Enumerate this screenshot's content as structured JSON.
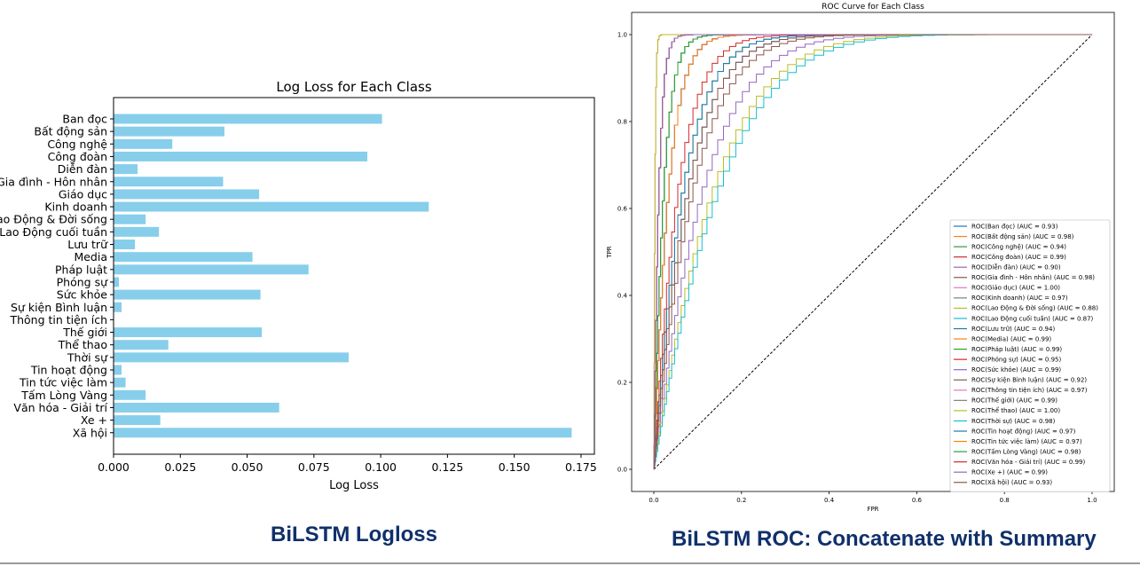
{
  "captions": {
    "left": "BiLSTM Logloss",
    "right": "BiLSTM ROC: Concatenate with Summary"
  },
  "chart_data": [
    {
      "type": "bar",
      "orientation": "horizontal",
      "title": "Log Loss for Each Class",
      "xlabel": "Log Loss",
      "ylabel": "",
      "xlim": [
        0,
        0.18
      ],
      "xticks": [
        "0.000",
        "0.025",
        "0.050",
        "0.075",
        "0.100",
        "0.125",
        "0.150",
        "0.175"
      ],
      "xtick_values": [
        0,
        0.025,
        0.05,
        0.075,
        0.1,
        0.125,
        0.15,
        0.175
      ],
      "bar_color": "#87ceeb",
      "categories": [
        "Ban đọc",
        "Bất động sản",
        "Công nghệ",
        "Công đoàn",
        "Diễn đàn",
        "Gia đình - Hôn nhân",
        "Giáo dục",
        "Kinh doanh",
        "Lao Động & Đời sống",
        "Lao Động cuối tuần",
        "Lưu trữ",
        "Media",
        "Pháp luật",
        "Phóng sự",
        "Sức khỏe",
        "Sự kiện Bình luận",
        "Thông tin tiện ích",
        "Thế giới",
        "Thể thao",
        "Thời sự",
        "Tin hoạt động",
        "Tin tức việc làm",
        "Tấm Lòng Vàng",
        "Văn hóa - Giải trí",
        "Xe +",
        "Xã hội"
      ],
      "values": [
        0.1005,
        0.0415,
        0.022,
        0.095,
        0.009,
        0.041,
        0.0545,
        0.118,
        0.012,
        0.017,
        0.008,
        0.052,
        0.073,
        0.002,
        0.055,
        0.003,
        0.0,
        0.0555,
        0.0205,
        0.088,
        0.003,
        0.0045,
        0.012,
        0.062,
        0.0175,
        0.1715
      ]
    },
    {
      "type": "line",
      "title": "ROC Curve for Each Class",
      "xlabel": "FPR",
      "ylabel": "TPR",
      "xlim": [
        -0.05,
        1.05
      ],
      "ylim": [
        -0.05,
        1.05
      ],
      "xticks": [
        "0.0",
        "0.2",
        "0.4",
        "0.6",
        "0.8",
        "1.0"
      ],
      "yticks": [
        "0.0",
        "0.2",
        "0.4",
        "0.6",
        "0.8",
        "1.0"
      ],
      "tick_values": [
        0,
        0.2,
        0.4,
        0.6,
        0.8,
        1.0
      ],
      "legend_position": "lower-right",
      "diagonal_reference": true,
      "series": [
        {
          "name": "ROC(Ban đọc) (AUC = 0.93)",
          "auc": 0.93,
          "color": "#1f77b4"
        },
        {
          "name": "ROC(Bất động sản) (AUC = 0.98)",
          "auc": 0.98,
          "color": "#ff7f0e"
        },
        {
          "name": "ROC(Công nghệ) (AUC = 0.94)",
          "auc": 0.94,
          "color": "#2ca02c"
        },
        {
          "name": "ROC(Công đoàn) (AUC = 0.99)",
          "auc": 0.99,
          "color": "#d62728"
        },
        {
          "name": "ROC(Diễn đàn) (AUC = 0.90)",
          "auc": 0.9,
          "color": "#9467bd"
        },
        {
          "name": "ROC(Gia đình - Hôn nhân) (AUC = 0.98)",
          "auc": 0.98,
          "color": "#8c564b"
        },
        {
          "name": "ROC(Giáo dục) (AUC = 1.00)",
          "auc": 1.0,
          "color": "#e377c2"
        },
        {
          "name": "ROC(Kinh doanh) (AUC = 0.97)",
          "auc": 0.97,
          "color": "#7f7f7f"
        },
        {
          "name": "ROC(Lao Động & Đời sống) (AUC = 0.88)",
          "auc": 0.88,
          "color": "#bcbd22"
        },
        {
          "name": "ROC(Lao Động cuối tuần) (AUC = 0.87)",
          "auc": 0.87,
          "color": "#17becf"
        },
        {
          "name": "ROC(Lưu trữ) (AUC = 0.94)",
          "auc": 0.94,
          "color": "#1f77b4"
        },
        {
          "name": "ROC(Media) (AUC = 0.99)",
          "auc": 0.99,
          "color": "#ff7f0e"
        },
        {
          "name": "ROC(Pháp luật) (AUC = 0.99)",
          "auc": 0.99,
          "color": "#2ca02c"
        },
        {
          "name": "ROC(Phóng sự) (AUC = 0.95)",
          "auc": 0.95,
          "color": "#d62728"
        },
        {
          "name": "ROC(Sức khỏe) (AUC = 0.99)",
          "auc": 0.99,
          "color": "#9467bd"
        },
        {
          "name": "ROC(Sự kiện Bình luận) (AUC = 0.92)",
          "auc": 0.92,
          "color": "#8c564b"
        },
        {
          "name": "ROC(Thông tin tiện ích) (AUC = 0.97)",
          "auc": 0.97,
          "color": "#e377c2"
        },
        {
          "name": "ROC(Thế giới) (AUC = 0.99)",
          "auc": 0.99,
          "color": "#7f7f7f"
        },
        {
          "name": "ROC(Thể thao) (AUC = 1.00)",
          "auc": 1.0,
          "color": "#bcbd22"
        },
        {
          "name": "ROC(Thời sự) (AUC = 0.98)",
          "auc": 0.98,
          "color": "#17becf"
        },
        {
          "name": "ROC(Tin hoạt động) (AUC = 0.97)",
          "auc": 0.97,
          "color": "#1f77b4"
        },
        {
          "name": "ROC(Tin tức việc làm) (AUC = 0.97)",
          "auc": 0.97,
          "color": "#ff7f0e"
        },
        {
          "name": "ROC(Tấm Lòng Vàng) (AUC = 0.98)",
          "auc": 0.98,
          "color": "#2ca02c"
        },
        {
          "name": "ROC(Văn hóa - Giải trí) (AUC = 0.99)",
          "auc": 0.99,
          "color": "#d62728"
        },
        {
          "name": "ROC(Xe +) (AUC = 0.99)",
          "auc": 0.99,
          "color": "#9467bd"
        },
        {
          "name": "ROC(Xã hội) (AUC = 0.93)",
          "auc": 0.93,
          "color": "#8c564b"
        }
      ]
    }
  ]
}
